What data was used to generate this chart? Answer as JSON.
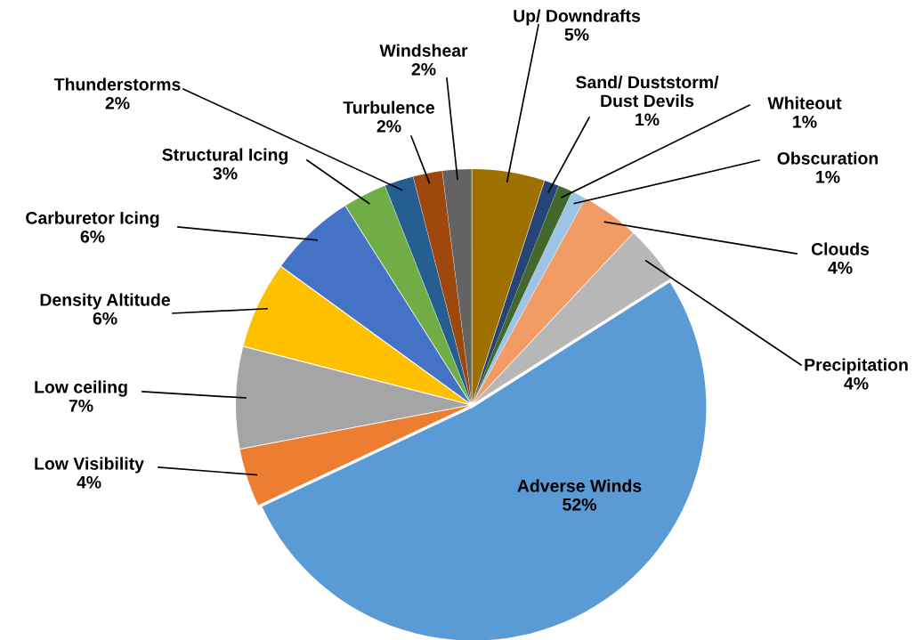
{
  "chart_data": {
    "type": "pie",
    "categories": [
      "Up/ Downdrafts",
      "Sand/ Duststorm/\nDust Devils",
      "Whiteout",
      "Obscuration",
      "Clouds",
      "Precipitation",
      "Adverse Winds",
      "Low Visibility",
      "Low ceiling",
      "Density Altitude",
      "Carburetor Icing",
      "Structural Icing",
      "Thunderstorms",
      "Turbulence",
      "Windshear"
    ],
    "values": [
      5,
      1,
      1,
      1,
      4,
      4,
      52,
      4,
      7,
      6,
      6,
      3,
      2,
      2,
      2
    ],
    "colors": [
      "#9e7000",
      "#264478",
      "#43682b",
      "#9dc3e6",
      "#f19c65",
      "#b7b7b7",
      "#5b9bd5",
      "#ed7d31",
      "#a5a5a5",
      "#ffc000",
      "#4472c4",
      "#70ad47",
      "#255e91",
      "#9e480e",
      "#636363"
    ],
    "value_labels": [
      "5%",
      "1%",
      "1%",
      "1%",
      "4%",
      "4%",
      "52%",
      "4%",
      "7%",
      "6%",
      "6%",
      "3%",
      "2%",
      "2%",
      "2%"
    ],
    "legend": false
  }
}
